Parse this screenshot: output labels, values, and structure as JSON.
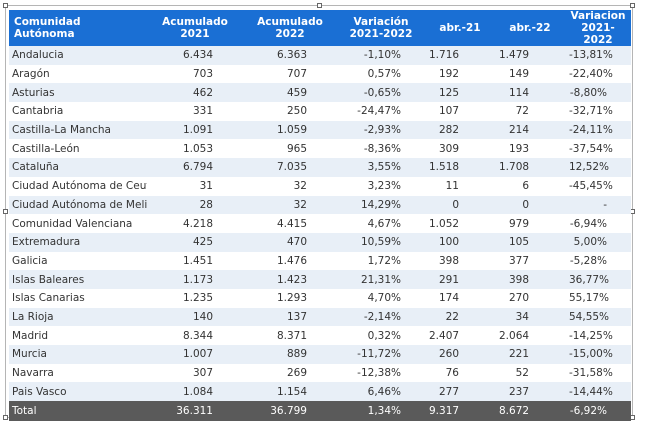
{
  "table": {
    "headers": [
      "Comunidad Autónoma",
      "Acumulado 2021",
      "Acumulado 2022",
      "Variación 2021-2022",
      "abr.-21",
      "abr.-22",
      "Variacion 2021-2022"
    ],
    "rows": [
      [
        "Andalucia",
        "6.434",
        "6.363",
        "-1,10%",
        "1.716",
        "1.479",
        "-13,81%"
      ],
      [
        "Aragón",
        "703",
        "707",
        "0,57%",
        "192",
        "149",
        "-22,40%"
      ],
      [
        "Asturias",
        "462",
        "459",
        "-0,65%",
        "125",
        "114",
        "-8,80%"
      ],
      [
        "Cantabria",
        "331",
        "250",
        "-24,47%",
        "107",
        "72",
        "-32,71%"
      ],
      [
        "Castilla-La Mancha",
        "1.091",
        "1.059",
        "-2,93%",
        "282",
        "214",
        "-24,11%"
      ],
      [
        "Castilla-León",
        "1.053",
        "965",
        "-8,36%",
        "309",
        "193",
        "-37,54%"
      ],
      [
        "Cataluña",
        "6.794",
        "7.035",
        "3,55%",
        "1.518",
        "1.708",
        "12,52%"
      ],
      [
        "Ciudad Autónoma de Ceuta",
        "31",
        "32",
        "3,23%",
        "11",
        "6",
        "-45,45%"
      ],
      [
        "Ciudad Autónoma de Melilla",
        "28",
        "32",
        "14,29%",
        "0",
        "0",
        "-"
      ],
      [
        "Comunidad Valenciana",
        "4.218",
        "4.415",
        "4,67%",
        "1.052",
        "979",
        "-6,94%"
      ],
      [
        "Extremadura",
        "425",
        "470",
        "10,59%",
        "100",
        "105",
        "5,00%"
      ],
      [
        "Galicia",
        "1.451",
        "1.476",
        "1,72%",
        "398",
        "377",
        "-5,28%"
      ],
      [
        "Islas Baleares",
        "1.173",
        "1.423",
        "21,31%",
        "291",
        "398",
        "36,77%"
      ],
      [
        "Islas Canarias",
        "1.235",
        "1.293",
        "4,70%",
        "174",
        "270",
        "55,17%"
      ],
      [
        "La Rioja",
        "140",
        "137",
        "-2,14%",
        "22",
        "34",
        "54,55%"
      ],
      [
        "Madrid",
        "8.344",
        "8.371",
        "0,32%",
        "2.407",
        "2.064",
        "-14,25%"
      ],
      [
        "Murcia",
        "1.007",
        "889",
        "-11,72%",
        "260",
        "221",
        "-15,00%"
      ],
      [
        "Navarra",
        "307",
        "269",
        "-12,38%",
        "76",
        "52",
        "-31,58%"
      ],
      [
        "Pais Vasco",
        "1.084",
        "1.154",
        "6,46%",
        "277",
        "237",
        "-14,44%"
      ]
    ],
    "total": [
      "Total",
      "36.311",
      "36.799",
      "1,34%",
      "9.317",
      "8.672",
      "-6,92%"
    ]
  },
  "colors": {
    "header_bg": "#1a6fd4",
    "stripe_bg": "#e8eff7",
    "total_bg": "#5a5a5a"
  }
}
